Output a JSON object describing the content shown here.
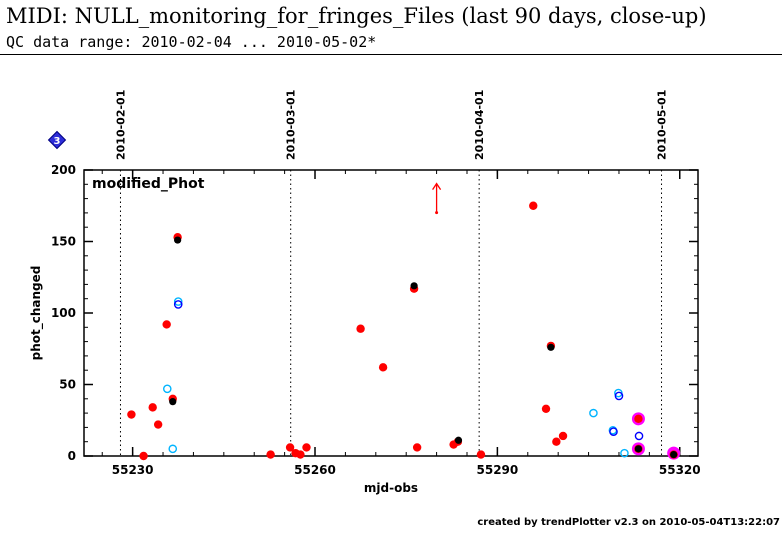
{
  "header": {
    "title": "MIDI: NULL_monitoring_for_fringes_Files (last 90 days, close-up)",
    "subtitle": "QC data range: 2010-02-04 ... 2010-05-02*"
  },
  "footer": {
    "text": "created by trendPlotter v2.3 on 2010-05-04T13:22:07"
  },
  "chart_data": {
    "type": "scatter",
    "title": "modified_Phot",
    "xlabel": "mjd-obs",
    "ylabel": "phot_changed",
    "xlim": [
      55222,
      55323
    ],
    "ylim": [
      0,
      200
    ],
    "xticks": [
      55230,
      55260,
      55290,
      55320
    ],
    "yticks": [
      0,
      50,
      100,
      150,
      200
    ],
    "badge": "3",
    "date_markers": [
      {
        "label": "2010-02-01",
        "x": 55228
      },
      {
        "label": "2010-03-01",
        "x": 55256
      },
      {
        "label": "2010-04-01",
        "x": 55287
      },
      {
        "label": "2010-05-01",
        "x": 55317
      }
    ],
    "upper_limit_arrow": {
      "x": 55280,
      "y": 180
    },
    "series": [
      {
        "color": "#ff0000",
        "marker": "filled-circle",
        "points": [
          [
            55229.8,
            29
          ],
          [
            55231.8,
            0
          ],
          [
            55233.3,
            34
          ],
          [
            55234.2,
            22
          ],
          [
            55235.6,
            92
          ],
          [
            55236.6,
            40
          ],
          [
            55237.4,
            153
          ],
          [
            55252.7,
            1
          ],
          [
            55255.9,
            6
          ],
          [
            55256.8,
            2
          ],
          [
            55257.6,
            1
          ],
          [
            55258.6,
            6
          ],
          [
            55267.5,
            89
          ],
          [
            55271.2,
            62
          ],
          [
            55276.3,
            117
          ],
          [
            55276.8,
            6
          ],
          [
            55282.8,
            8
          ],
          [
            55283.5,
            10
          ],
          [
            55287.3,
            1
          ],
          [
            55295.9,
            175
          ],
          [
            55298.0,
            33
          ],
          [
            55298.8,
            77
          ],
          [
            55299.7,
            10
          ],
          [
            55300.8,
            14
          ],
          [
            55313.2,
            26
          ],
          [
            55313.2,
            5
          ],
          [
            55319.0,
            1
          ]
        ]
      },
      {
        "color": "#000000",
        "marker": "filled-circle",
        "points": [
          [
            55236.6,
            38
          ],
          [
            55237.4,
            151
          ],
          [
            55276.3,
            119
          ],
          [
            55283.6,
            11
          ],
          [
            55298.8,
            76
          ],
          [
            55313.2,
            5
          ],
          [
            55319.0,
            1
          ]
        ]
      },
      {
        "color": "#00b4ff",
        "marker": "open-circle",
        "points": [
          [
            55235.7,
            47
          ],
          [
            55236.6,
            5
          ],
          [
            55237.5,
            108
          ],
          [
            55305.8,
            30
          ],
          [
            55309.0,
            18
          ],
          [
            55309.9,
            44
          ],
          [
            55310.9,
            2
          ]
        ]
      },
      {
        "color": "#0000ff",
        "marker": "open-circle",
        "points": [
          [
            55237.5,
            106
          ],
          [
            55309.1,
            17
          ],
          [
            55310.0,
            42
          ],
          [
            55313.3,
            14
          ]
        ]
      },
      {
        "color": "#ff00ff",
        "marker": "large-filled-circle",
        "points": [
          [
            55313.2,
            26
          ],
          [
            55313.2,
            5
          ],
          [
            55319.0,
            2
          ]
        ]
      }
    ]
  }
}
